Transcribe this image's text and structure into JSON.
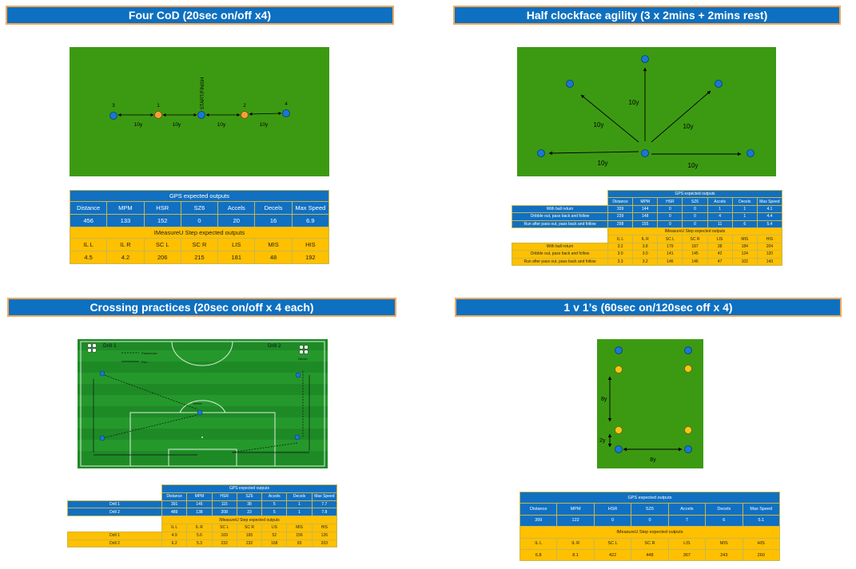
{
  "sections": {
    "four_cod": {
      "title": "Four CoD (20sec on/off x4)",
      "cones": {
        "n3": "3",
        "n1": "1",
        "n2": "2",
        "n4": "4"
      },
      "start_label": "START/FINISH",
      "dist_labels": [
        "10y",
        "10y",
        "10y",
        "10y"
      ],
      "gps": {
        "heading": "GPS expected outputs",
        "columns": [
          "Distance",
          "MPM",
          "HSR",
          "SZ6",
          "Accels",
          "Decels",
          "Max Speed"
        ],
        "values": [
          "456",
          "133",
          "152",
          "0",
          "20",
          "16",
          "6.9"
        ]
      },
      "imu": {
        "heading": "IMeasureU Step expected outputs",
        "columns": [
          "IL L",
          "IL R",
          "SC L",
          "SC R",
          "LIS",
          "MIS",
          "HIS"
        ],
        "values": [
          "4.5",
          "4.2",
          "206",
          "215",
          "181",
          "48",
          "192"
        ]
      }
    },
    "clockface": {
      "title": "Half clockface agility (3 x 2mins + 2mins rest)",
      "dist_labels": [
        "10y",
        "10y",
        "10y",
        "10y",
        "10y"
      ],
      "gps": {
        "heading": "GPS expected outputs",
        "columns": [
          "Distance",
          "MPM",
          "HSR",
          "SZ6",
          "Accels",
          "Decels",
          "Max Speed"
        ],
        "rows": [
          {
            "label": "With ball return",
            "values": [
              "339",
              "144",
              "0",
              "0",
              "1",
              "1",
              "4.1"
            ]
          },
          {
            "label": "Dribble out, pass back and follow",
            "values": [
              "239",
              "148",
              "0",
              "0",
              "4",
              "1",
              "4.4"
            ]
          },
          {
            "label": "Run after pass out, pass back and follow",
            "values": [
              "298",
              "155",
              "0",
              "0",
              "11",
              "6",
              "5.4"
            ]
          }
        ]
      },
      "imu": {
        "heading": "IMeasureU Step expected outputs",
        "columns": [
          "IL L",
          "IL R",
          "SC L",
          "SC R",
          "LIS",
          "MIS",
          "HIS"
        ],
        "rows": [
          {
            "label": "With ball return",
            "values": [
              "3.2",
              "3.8",
              "179",
              "187",
              "38",
              "184",
              "204"
            ]
          },
          {
            "label": "Dribble out, pass back and follow",
            "values": [
              "3.0",
              "3.0",
              "141",
              "145",
              "42",
              "124",
              "120"
            ]
          },
          {
            "label": "Run after pass out, pass back and follow",
            "values": [
              "3.3",
              "3.2",
              "146",
              "146",
              "47",
              "102",
              "143"
            ]
          }
        ]
      }
    },
    "crossing": {
      "title": "Crossing practices (20sec on/off x 4 each)",
      "drill1_label": "Drill 1",
      "drill2_label": "Drill 2",
      "legend": {
        "pass": "Pass/cross",
        "run": "Run"
      },
      "server_label": "Server",
      "gps": {
        "heading": "GPS expected outputs",
        "columns": [
          "Distance",
          "MPM",
          "HSR",
          "SZ6",
          "Accels",
          "Decels",
          "Max Speed"
        ],
        "rows": [
          {
            "label": "Drill 1",
            "values": [
              "391",
              "145",
              "115",
              "38",
              "5",
              "1",
              "7.7"
            ]
          },
          {
            "label": "Drill 2",
            "values": [
              "489",
              "138",
              "208",
              "23",
              "5",
              "1",
              "7.8"
            ]
          }
        ]
      },
      "imu": {
        "heading": "IMeasureU Step expected outputs",
        "columns": [
          "IL L",
          "IL R",
          "SC L",
          "SC R",
          "LIS",
          "MIS",
          "HIS"
        ],
        "rows": [
          {
            "label": "Drill 1",
            "values": [
              "4.9",
              "5.6",
              "169",
              "165",
              "52",
              "156",
              "126"
            ]
          },
          {
            "label": "Drill 2",
            "values": [
              "6.2",
              "5.3",
              "232",
              "232",
              "168",
              "93",
              "203"
            ]
          }
        ]
      }
    },
    "one_v_one": {
      "title": "1 v 1’s (60sec on/120sec off x 4)",
      "dist_labels": {
        "vertical_long": "8y",
        "vertical_short": "2y",
        "horizontal": "8y"
      },
      "gps": {
        "heading": "GPS expected outputs",
        "columns": [
          "Distance",
          "MPM",
          "HSR",
          "SZ6",
          "Accels",
          "Decels",
          "Max Speed"
        ],
        "values": [
          "399",
          "122",
          "0",
          "0",
          "7",
          "6",
          "5.1"
        ]
      },
      "imu": {
        "heading": "IMeasureU Step expected outputs",
        "columns": [
          "IL L",
          "IL R",
          "SC L",
          "SC R",
          "LIS",
          "MIS",
          "HIS"
        ],
        "values": [
          "6.8",
          "8.1",
          "422",
          "448",
          "367",
          "243",
          "260"
        ]
      }
    }
  },
  "colors": {
    "title_bg": "#0e70c0",
    "title_border": "#f2a85c",
    "field_green": "#3c9a12",
    "table_blue": "#1170c2",
    "table_yellow": "#ffc000",
    "cone_blue": "#1a77d4",
    "cone_orange": "#f2a03a",
    "cone_yellow": "#f5c518"
  }
}
